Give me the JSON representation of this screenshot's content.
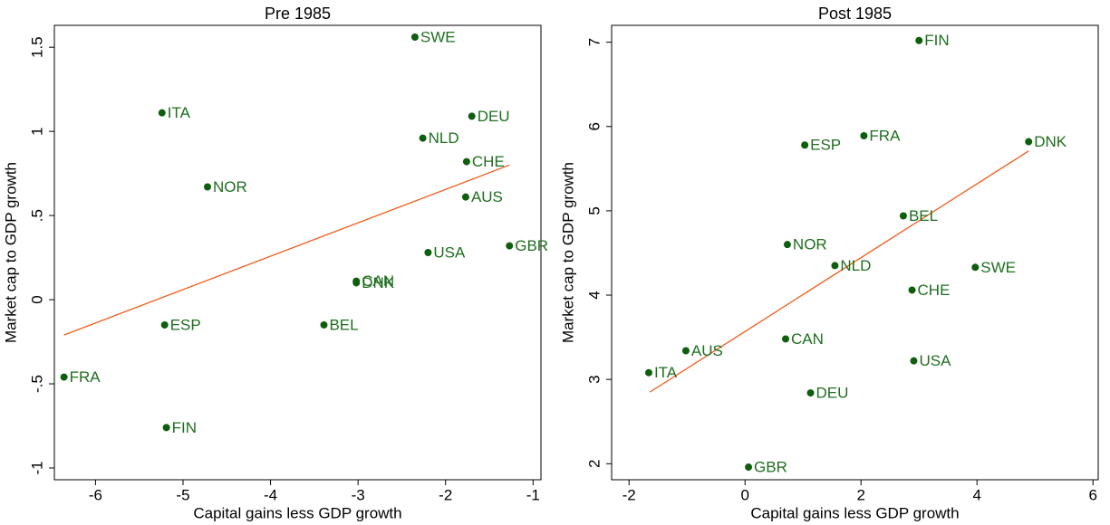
{
  "chart_data": [
    {
      "type": "scatter",
      "title": "Pre 1985",
      "x_label": "Capital gains less GDP growth",
      "y_label": "Market cap to GDP growth",
      "color": "#0d5e0d",
      "label_color": "#1f6e1f",
      "labels": [
        "SWE",
        "ITA",
        "DEU",
        "NLD",
        "CHE",
        "NOR",
        "AUS",
        "GBR",
        "USA",
        "CAN",
        "DNK",
        "ESP",
        "BEL",
        "FRA",
        "FIN"
      ],
      "x": [
        -2.35,
        -5.24,
        -1.7,
        -2.26,
        -1.76,
        -4.72,
        -1.77,
        -1.27,
        -2.2,
        -3.02,
        -3.02,
        -5.21,
        -3.39,
        -6.36,
        -5.19
      ],
      "values": [
        1.56,
        1.11,
        1.09,
        0.96,
        0.82,
        0.67,
        0.61,
        0.32,
        0.28,
        0.11,
        0.1,
        -0.15,
        -0.15,
        -0.46,
        -0.76
      ],
      "fit": {
        "color": "#f05a1a",
        "x": [
          -6.36,
          -1.27
        ],
        "values": [
          -0.21,
          0.8
        ]
      },
      "xlim": [
        -6.47,
        -0.91
      ],
      "ylim": [
        -1.07,
        1.63
      ],
      "xticks": [
        -6,
        -5,
        -4,
        -3,
        -2,
        -1
      ],
      "yticks": [
        -1,
        {
          "value": -0.5,
          "label": "-.5"
        },
        0,
        {
          "value": 0.5,
          "label": ".5"
        },
        1,
        1.5
      ]
    },
    {
      "type": "scatter",
      "title": "Post 1985",
      "x_label": "Capital gains less GDP growth",
      "y_label": "Market cap to GDP growth",
      "color": "#0d5e0d",
      "label_color": "#1f6e1f",
      "labels": [
        "FIN",
        "ESP",
        "FRA",
        "DNK",
        "BEL",
        "NOR",
        "NLD",
        "SWE",
        "CHE",
        "CAN",
        "AUS",
        "ITA",
        "USA",
        "DEU",
        "GBR"
      ],
      "x": [
        3.0,
        1.03,
        2.05,
        4.89,
        2.73,
        0.73,
        1.55,
        3.97,
        2.88,
        0.7,
        -1.02,
        -1.66,
        2.91,
        1.13,
        0.06
      ],
      "values": [
        7.02,
        5.78,
        5.89,
        5.82,
        4.94,
        4.6,
        4.35,
        4.33,
        4.06,
        3.48,
        3.34,
        3.08,
        3.22,
        2.84,
        1.96
      ],
      "fit": {
        "color": "#f05a1a",
        "x": [
          -1.64,
          4.89
        ],
        "values": [
          2.85,
          5.71
        ]
      },
      "xlim": [
        -2.3,
        6.09
      ],
      "ylim": [
        1.81,
        7.2
      ],
      "xticks": [
        -2,
        0,
        2,
        4,
        6
      ],
      "yticks": [
        2,
        3,
        4,
        5,
        6,
        7
      ]
    }
  ]
}
